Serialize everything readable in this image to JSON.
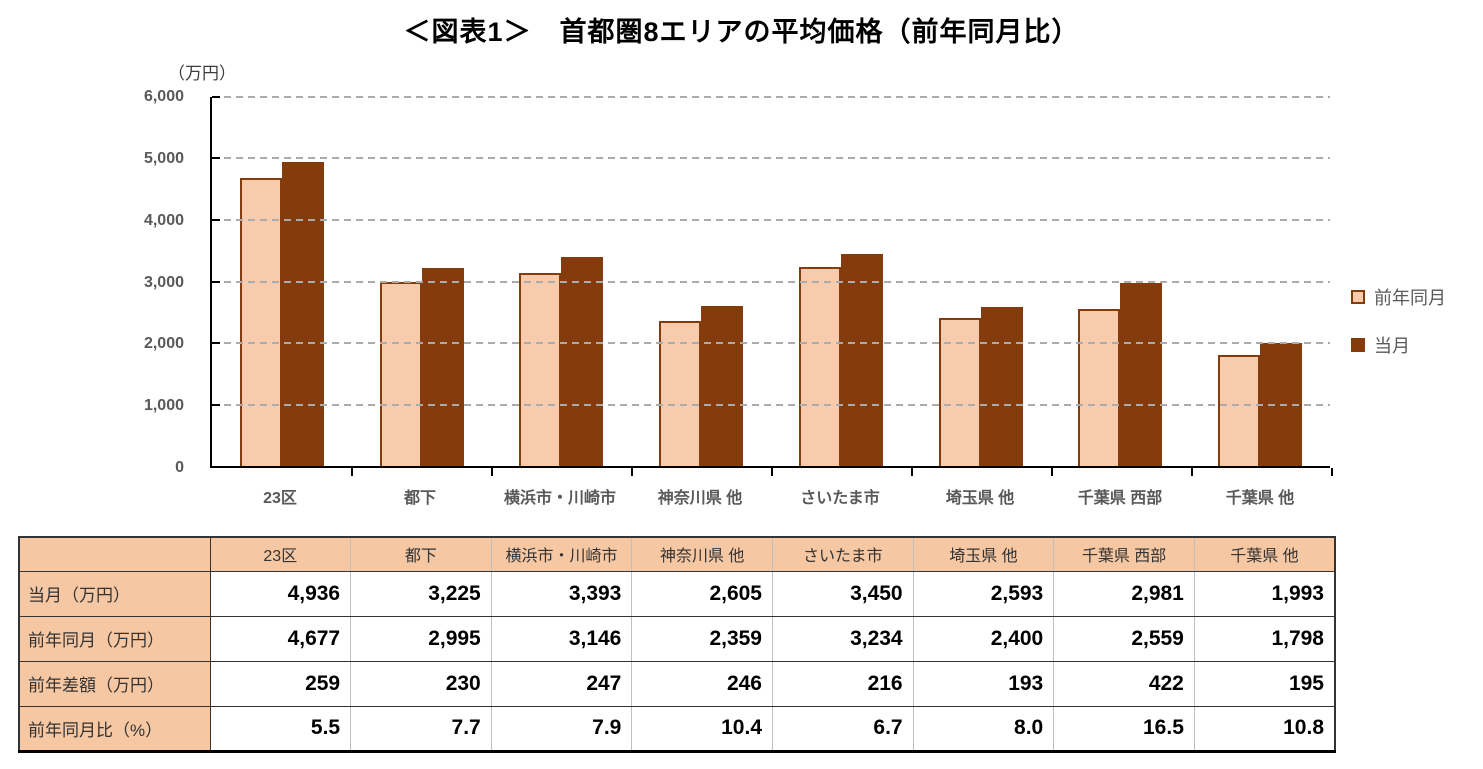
{
  "title": "＜図表1＞　首都圏8エリアの平均価格（前年同月比）",
  "chart_data": {
    "type": "bar",
    "title": "＜図表1＞　首都圏8エリアの平均価格（前年同月比）",
    "unit_label": "（万円）",
    "categories": [
      "23区",
      "都下",
      "横浜市・川崎市",
      "神奈川県 他",
      "さいたま市",
      "埼玉県 他",
      "千葉県 西部",
      "千葉県 他"
    ],
    "series": [
      {
        "name": "前年同月",
        "values": [
          4677,
          2995,
          3146,
          2359,
          3234,
          2400,
          2559,
          1798
        ],
        "fill": "#F8CBAD",
        "border": "#843C0C"
      },
      {
        "name": "当月",
        "values": [
          4936,
          3225,
          3393,
          2605,
          3450,
          2593,
          2981,
          1993
        ],
        "fill": "#843C0C",
        "border": "#843C0C"
      }
    ],
    "ylim": [
      0,
      6000
    ],
    "ytick_step": 1000,
    "ytick_labels": [
      "0",
      "1,000",
      "2,000",
      "3,000",
      "4,000",
      "5,000",
      "6,000"
    ],
    "grid": "horizontal-dashed",
    "legend_position": "right"
  },
  "table": {
    "columns": [
      "23区",
      "都下",
      "横浜市・川崎市",
      "神奈川県 他",
      "さいたま市",
      "埼玉県 他",
      "千葉県 西部",
      "千葉県 他"
    ],
    "rows": [
      {
        "label": "当月（万円）",
        "values": [
          "4,936",
          "3,225",
          "3,393",
          "2,605",
          "3,450",
          "2,593",
          "2,981",
          "1,993"
        ]
      },
      {
        "label": "前年同月（万円）",
        "values": [
          "4,677",
          "2,995",
          "3,146",
          "2,359",
          "3,234",
          "2,400",
          "2,559",
          "1,798"
        ]
      },
      {
        "label": "前年差額（万円）",
        "values": [
          "259",
          "230",
          "247",
          "246",
          "216",
          "193",
          "422",
          "195"
        ]
      },
      {
        "label": "前年同月比（%）",
        "values": [
          "5.5",
          "7.7",
          "7.9",
          "10.4",
          "6.7",
          "8.0",
          "16.5",
          "10.8"
        ]
      }
    ]
  },
  "colors": {
    "series1_fill": "#F8CBAD",
    "series1_border": "#843C0C",
    "series2_fill": "#843C0C",
    "gridline": "#ABABAB",
    "axis": "#000000",
    "tick_label": "#595959",
    "table_header_bg": "#F5C7A3",
    "table_border_dark": "#333333",
    "table_border_light": "#BFBFBF"
  }
}
